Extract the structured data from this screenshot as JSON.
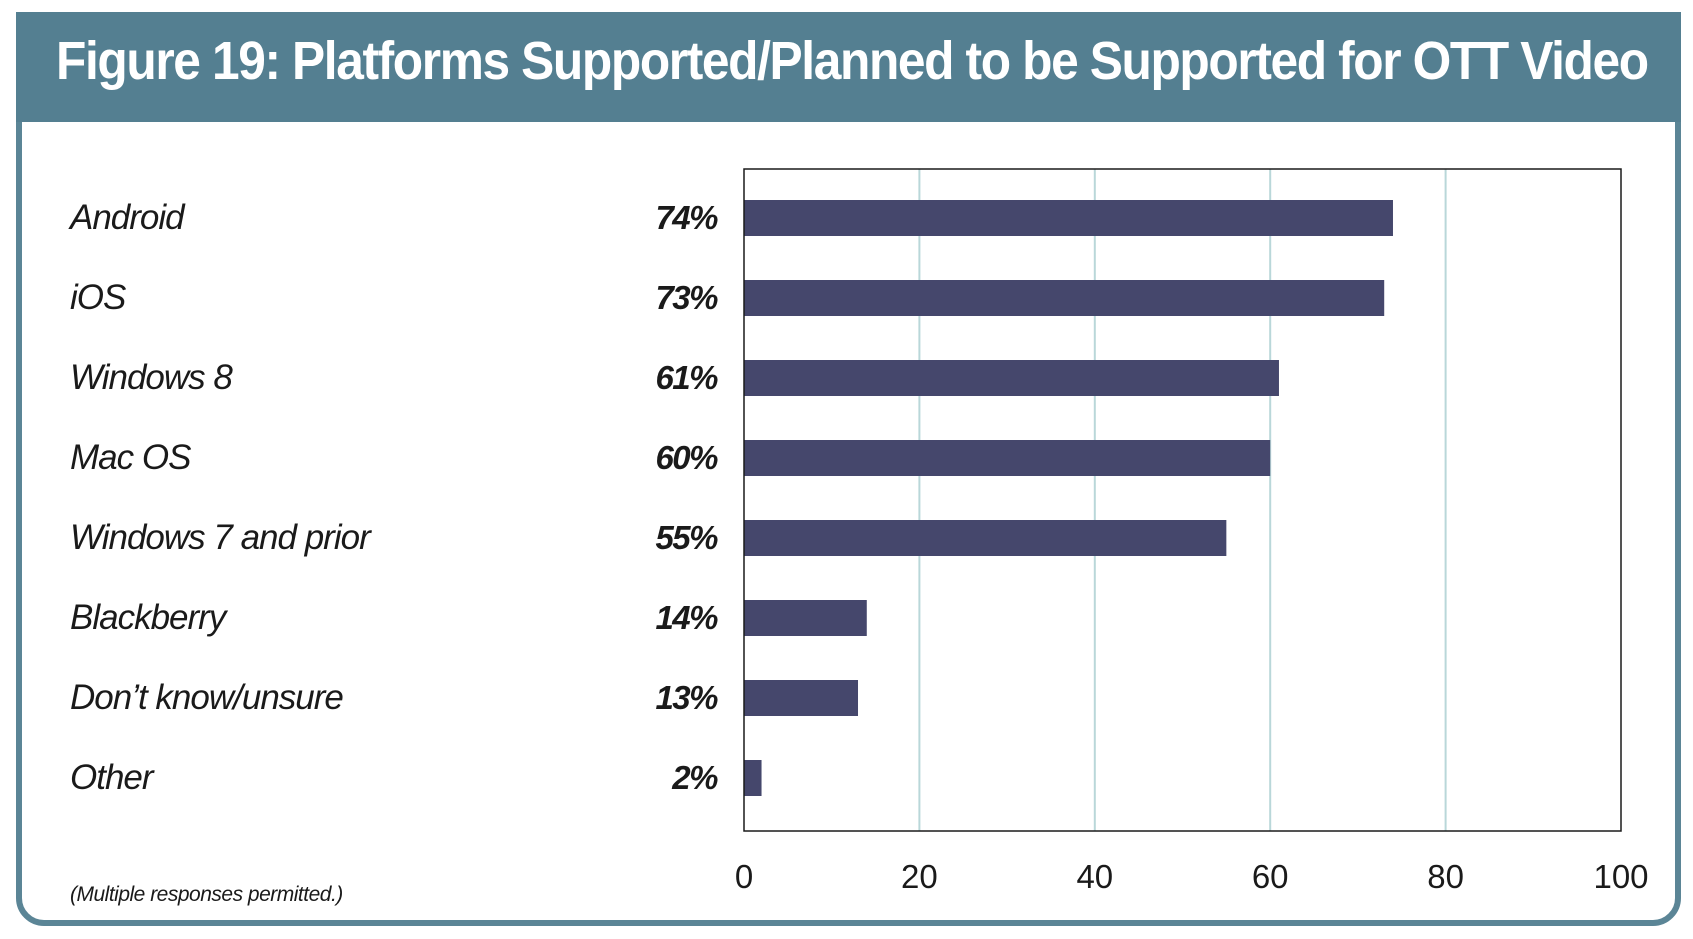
{
  "header": {
    "title": "Figure 19:  Platforms Supported/Planned to be Supported for OTT Video"
  },
  "note": "(Multiple responses permitted.)",
  "colors": {
    "header_bg": "#547f91",
    "bar": "#45476c",
    "grid": "#b9d7d9"
  },
  "chart_data": {
    "type": "bar",
    "orientation": "horizontal",
    "categories": [
      "Android",
      "iOS",
      "Windows 8",
      "Mac OS",
      "Windows 7 and prior",
      "Blackberry",
      "Don’t know/unsure",
      "Other"
    ],
    "values": [
      74,
      73,
      61,
      60,
      55,
      14,
      13,
      2
    ],
    "value_labels": [
      "74%",
      "73%",
      "61%",
      "60%",
      "55%",
      "14%",
      "13%",
      "2%"
    ],
    "xlim": [
      0,
      100
    ],
    "x_ticks": [
      0,
      20,
      40,
      60,
      80,
      100
    ],
    "x_tick_labels": [
      "0",
      "20",
      "40",
      "60",
      "80",
      "100"
    ],
    "grid": true
  }
}
